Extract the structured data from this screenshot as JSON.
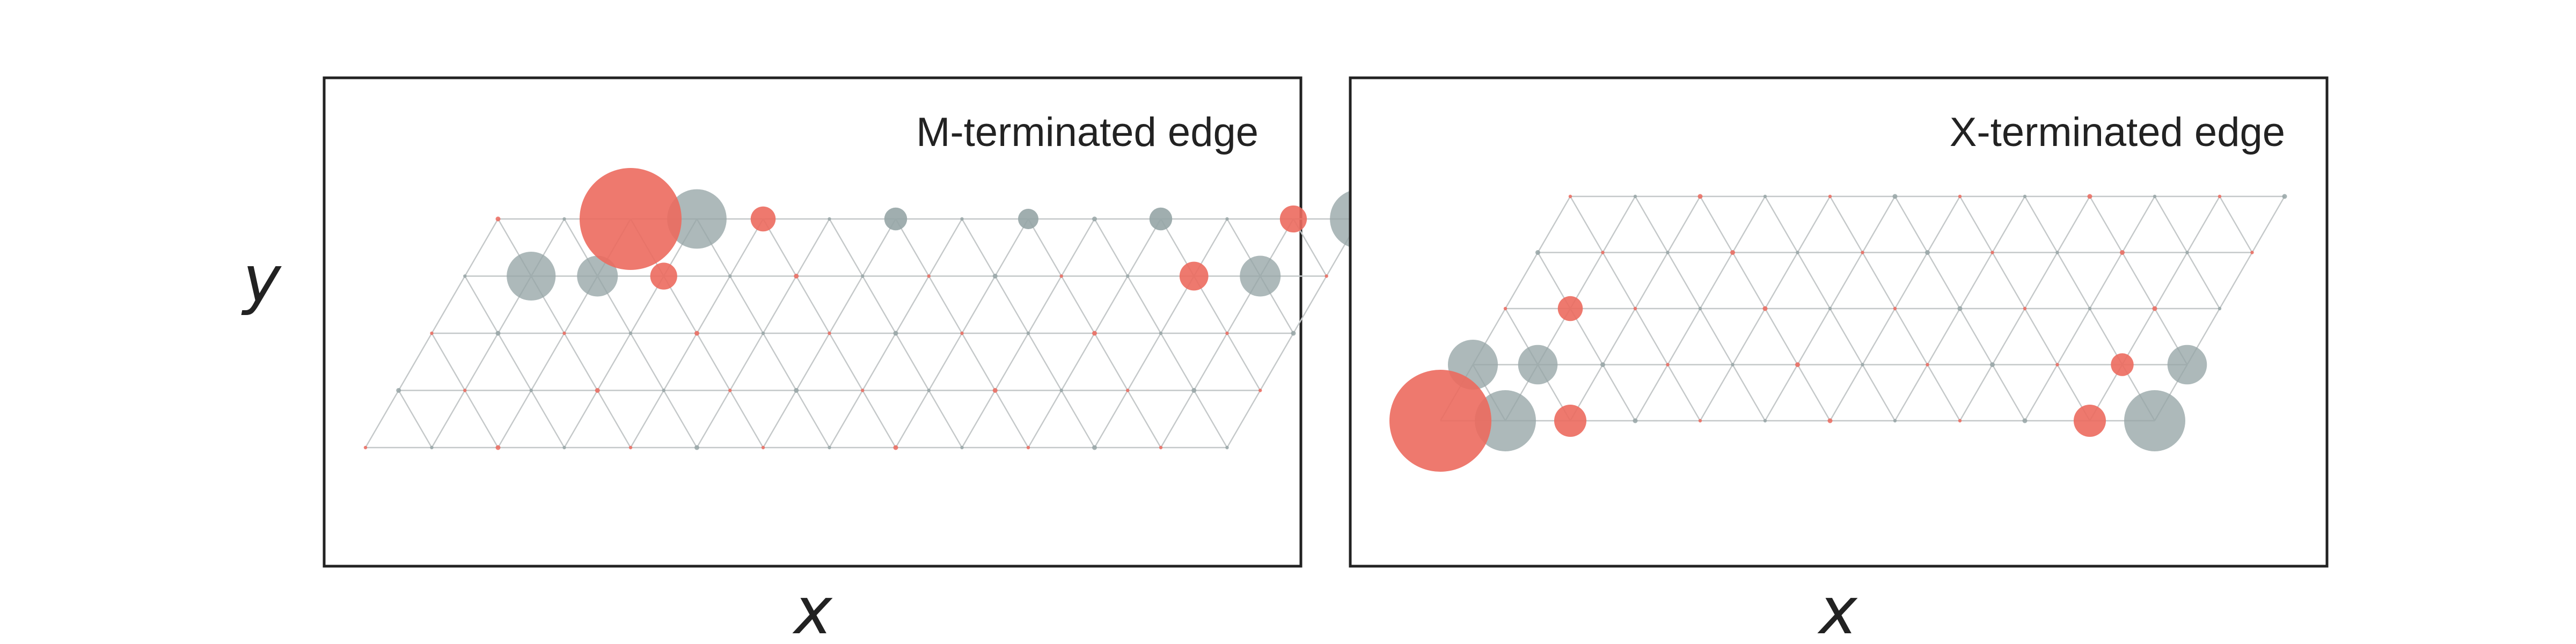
{
  "panels": [
    {
      "id": "m-terminated",
      "title": "M-terminated edge",
      "xlabel": "x",
      "ylabel": "y",
      "lattice": {
        "rows": 5,
        "cols": 13,
        "a": 1,
        "shear": "left",
        "first_row_species": "M"
      },
      "highlight_sites": [
        {
          "row": 0,
          "col": 2,
          "species": "M",
          "weight": 1.0
        },
        {
          "row": 0,
          "col": 3,
          "species": "X",
          "weight": 0.34
        },
        {
          "row": 0,
          "col": 13,
          "species": "X",
          "weight": 0.34
        },
        {
          "row": 1,
          "col": 1,
          "species": "X",
          "weight": 0.23
        },
        {
          "row": 1,
          "col": 2,
          "species": "X",
          "weight": 0.16
        },
        {
          "row": 1,
          "col": 3,
          "species": "M",
          "weight": 0.07
        },
        {
          "row": 1,
          "col": 11,
          "species": "M",
          "weight": 0.08
        },
        {
          "row": 1,
          "col": 12,
          "species": "X",
          "weight": 0.16
        },
        {
          "row": 0,
          "col": 4,
          "species": "M",
          "weight": 0.06
        },
        {
          "row": 0,
          "col": 12,
          "species": "M",
          "weight": 0.07
        },
        {
          "row": 0,
          "col": 6,
          "species": "X",
          "weight": 0.05
        },
        {
          "row": 0,
          "col": 8,
          "species": "X",
          "weight": 0.04
        },
        {
          "row": 0,
          "col": 10,
          "species": "X",
          "weight": 0.05
        }
      ]
    },
    {
      "id": "x-terminated",
      "title": "X-terminated edge",
      "xlabel": "x",
      "ylabel": "",
      "lattice": {
        "rows": 5,
        "cols": 11,
        "a": 1,
        "shear": "right",
        "first_row_species": "M"
      },
      "highlight_sites": [
        {
          "row": 0,
          "col": 0,
          "species": "M",
          "weight": 1.0
        },
        {
          "row": 0,
          "col": 1,
          "species": "X",
          "weight": 0.36
        },
        {
          "row": 0,
          "col": 11,
          "species": "X",
          "weight": 0.36
        },
        {
          "row": 1,
          "col": 0,
          "species": "X",
          "weight": 0.24
        },
        {
          "row": 1,
          "col": 1,
          "species": "X",
          "weight": 0.15
        },
        {
          "row": 0,
          "col": 2,
          "species": "M",
          "weight": 0.1
        },
        {
          "row": 0,
          "col": 10,
          "species": "M",
          "weight": 0.1
        },
        {
          "row": 1,
          "col": 11,
          "species": "X",
          "weight": 0.15
        },
        {
          "row": 2,
          "col": 1,
          "species": "M",
          "weight": 0.06
        },
        {
          "row": 1,
          "col": 10,
          "species": "M",
          "weight": 0.05
        }
      ]
    }
  ],
  "colors": {
    "metal": "#ec6a5e",
    "chalcogen": "#96a5a6",
    "bond": "#c4c8c9",
    "frame": "#222222"
  }
}
